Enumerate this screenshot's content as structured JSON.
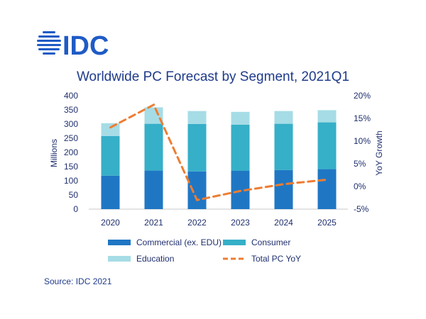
{
  "logo": {
    "text": "IDC"
  },
  "source": "Source: IDC 2021",
  "colors": {
    "commercial": "#1f77c4",
    "consumer": "#36afc8",
    "education": "#a6dce6",
    "yoy": "#ee7d31",
    "text": "#1f2f6e",
    "title": "#1f3b8a"
  },
  "chart_data": {
    "type": "bar",
    "stacked": true,
    "title": "Worldwide PC Forecast by Segment, 2021Q1",
    "categories": [
      "2020",
      "2021",
      "2022",
      "2023",
      "2024",
      "2025"
    ],
    "ylabel": "Millions",
    "ylim": [
      0,
      400
    ],
    "yticks": [
      "0",
      "50",
      "100",
      "150",
      "200",
      "250",
      "300",
      "350",
      "400"
    ],
    "y2label": "YoY Growth",
    "y2lim": [
      -5,
      20
    ],
    "y2ticks": [
      "-5%",
      "0%",
      "5%",
      "10%",
      "15%",
      "20%"
    ],
    "series": [
      {
        "name": "Commercial (ex. EDU)",
        "values": [
          118,
          136,
          133,
          135,
          138,
          141
        ]
      },
      {
        "name": "Consumer",
        "values": [
          140,
          165,
          167,
          163,
          163,
          165
        ]
      },
      {
        "name": "Education",
        "values": [
          45,
          58,
          46,
          45,
          45,
          43
        ]
      }
    ],
    "line_series": {
      "name": "Total PC YoY",
      "axis": "right",
      "values": [
        13,
        18,
        -3,
        -1,
        0.5,
        1.5
      ]
    }
  }
}
